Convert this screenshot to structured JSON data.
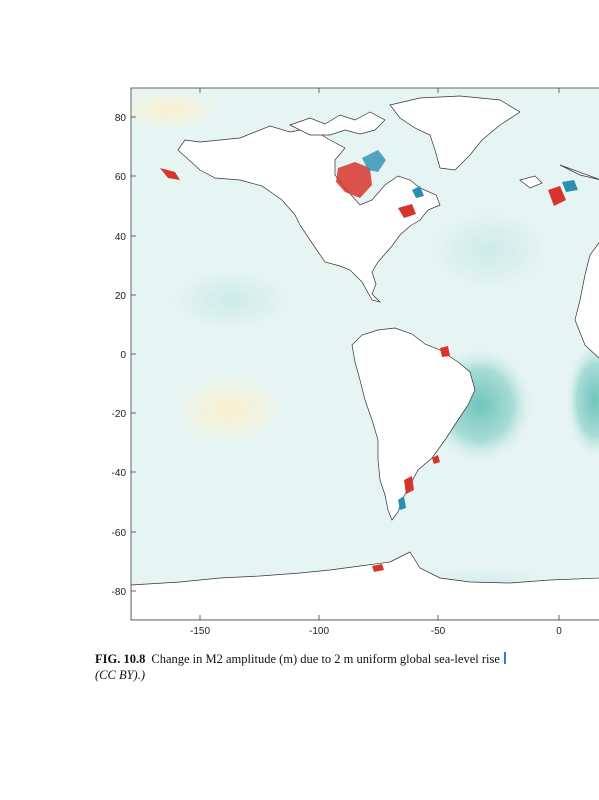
{
  "figure": {
    "x_ticks": [
      "-150",
      "-100",
      "-50",
      "0"
    ],
    "y_ticks": [
      "80",
      "60",
      "40",
      "20",
      "0",
      "-20",
      "-40",
      "-60",
      "-80"
    ],
    "colors": {
      "ocean_base": "#e6f5f3",
      "increase": "#d7352b",
      "decrease": "#2c8fb0",
      "slight_increase": "#fbf3d6",
      "slight_decrease": "#c7e9e6",
      "land": "#ffffff",
      "coastline": "#333333"
    }
  },
  "caption": {
    "label": "FIG. 10.8",
    "text": "Change in M2 amplitude (m) due to 2 m uniform global sea-level rise",
    "license": "(CC BY).)"
  }
}
